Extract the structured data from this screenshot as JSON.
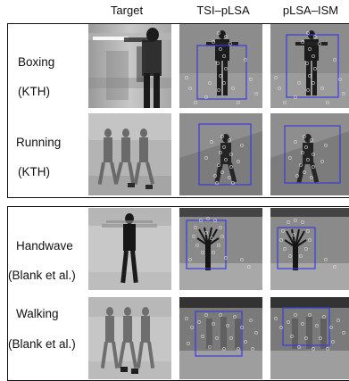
{
  "headers": {
    "target": "Target",
    "tsi": "TSI–pLSA",
    "ism": "pLSA–ISM"
  },
  "rows": [
    {
      "action": "Boxing",
      "dataset": "(KTH)"
    },
    {
      "action": "Running",
      "dataset": "(KTH)"
    },
    {
      "action": "Handwave",
      "dataset": "(Blank et al.)"
    },
    {
      "action": "Walking",
      "dataset": "(Blank et al.)"
    }
  ],
  "colors": {
    "box": "#3b3bdd",
    "frame": "#111111"
  }
}
